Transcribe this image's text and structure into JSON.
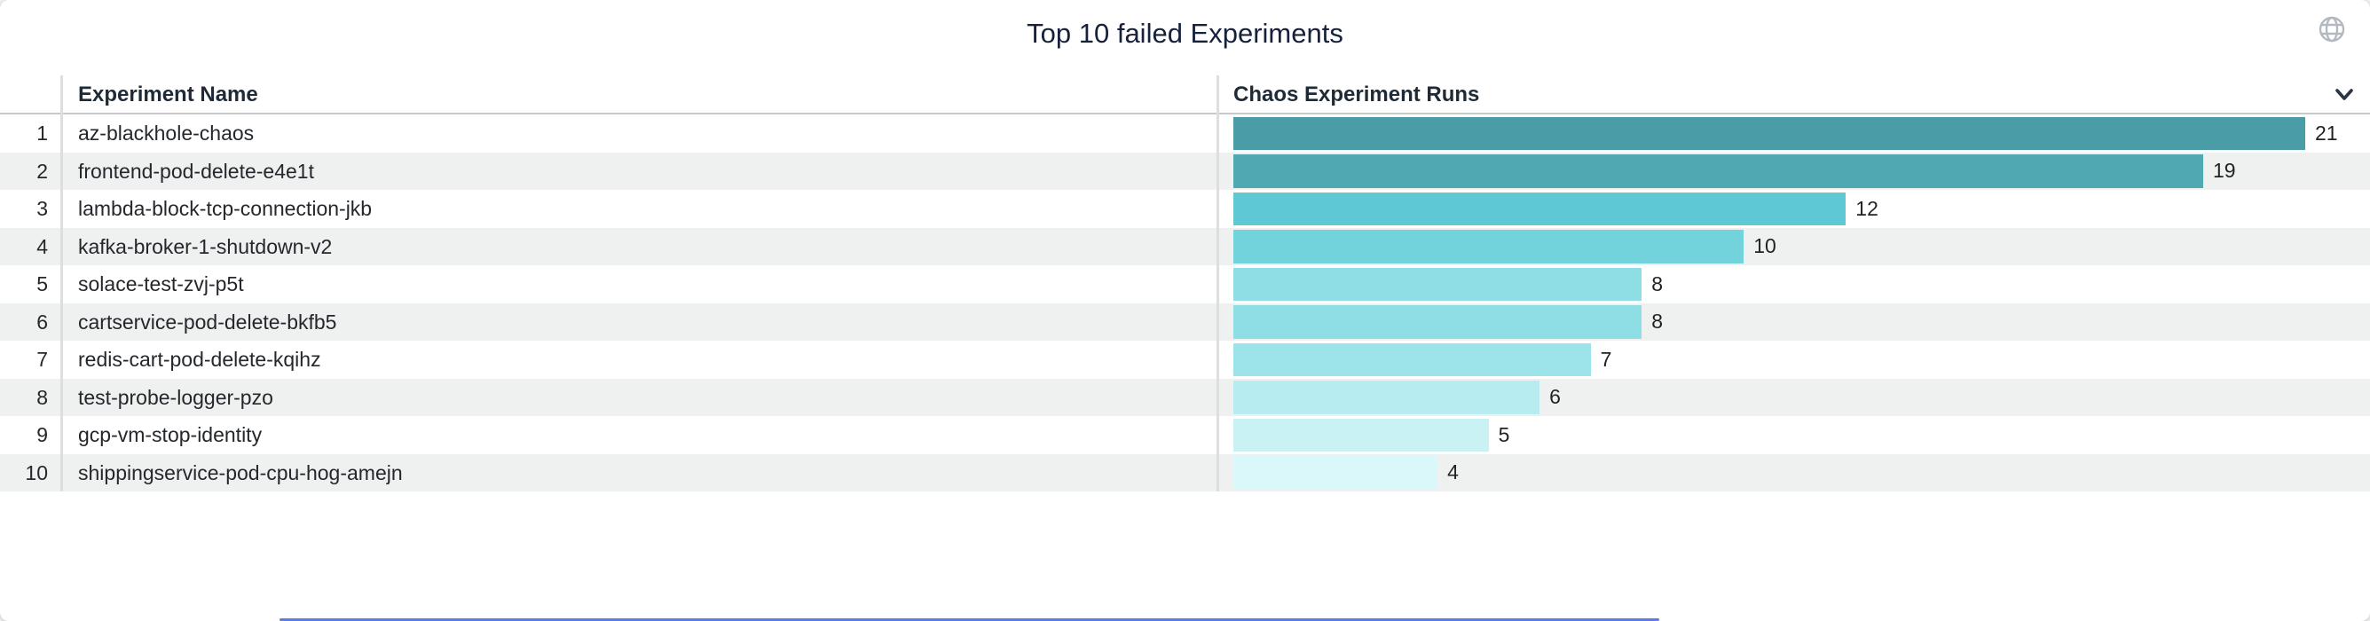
{
  "header": {
    "title": "Top 10 failed Experiments"
  },
  "icons": {
    "globe": "globe-icon",
    "chevron": "chevron-down-icon"
  },
  "table": {
    "columns": [
      "Experiment Name",
      "Chaos Experiment Runs"
    ],
    "rows": [
      {
        "rank": "1",
        "name": "az-blackhole-chaos",
        "runs": "21"
      },
      {
        "rank": "2",
        "name": "frontend-pod-delete-e4e1t",
        "runs": "19"
      },
      {
        "rank": "3",
        "name": "lambda-block-tcp-connection-jkb",
        "runs": "12"
      },
      {
        "rank": "4",
        "name": "kafka-broker-1-shutdown-v2",
        "runs": "10"
      },
      {
        "rank": "5",
        "name": "solace-test-zvj-p5t",
        "runs": "8"
      },
      {
        "rank": "6",
        "name": "cartservice-pod-delete-bkfb5",
        "runs": "8"
      },
      {
        "rank": "7",
        "name": "redis-cart-pod-delete-kqihz",
        "runs": "7"
      },
      {
        "rank": "8",
        "name": "test-probe-logger-pzo",
        "runs": "6"
      },
      {
        "rank": "9",
        "name": "gcp-vm-stop-identity",
        "runs": "5"
      },
      {
        "rank": "10",
        "name": "shippingservice-pod-cpu-hog-amejn",
        "runs": "4"
      }
    ]
  },
  "colors": {
    "title_text": "#17213a",
    "header_text": "#1f2a37",
    "body_text": "#24282c",
    "zebra_row": "#eff1f1",
    "divider": "#dcdedf",
    "header_border": "#c6c9cc",
    "globe_icon": "#b3b9c0",
    "chevron_icon": "#2b3644",
    "bottom_accent": "#5b7ce2",
    "bar_colors": [
      "#4a9da6",
      "#50a9b2",
      "#5ec9d4",
      "#72d3dd",
      "#8edee6",
      "#8edee6",
      "#9de4ea",
      "#b7ecf1",
      "#c9f2f5",
      "#daf7fa"
    ]
  },
  "chart_data": {
    "type": "bar",
    "orientation": "horizontal",
    "title": "Top 10 failed Experiments",
    "xlabel": "Chaos Experiment Runs",
    "ylabel": "Experiment Name",
    "categories": [
      "az-blackhole-chaos",
      "frontend-pod-delete-e4e1t",
      "lambda-block-tcp-connection-jkb",
      "kafka-broker-1-shutdown-v2",
      "solace-test-zvj-p5t",
      "cartservice-pod-delete-bkfb5",
      "redis-cart-pod-delete-kqihz",
      "test-probe-logger-pzo",
      "gcp-vm-stop-identity",
      "shippingservice-pod-cpu-hog-amejn"
    ],
    "values": [
      21,
      19,
      12,
      10,
      8,
      8,
      7,
      6,
      5,
      4
    ],
    "xlim": [
      0,
      22
    ],
    "value_labels": true,
    "grid": false,
    "legend": false
  }
}
